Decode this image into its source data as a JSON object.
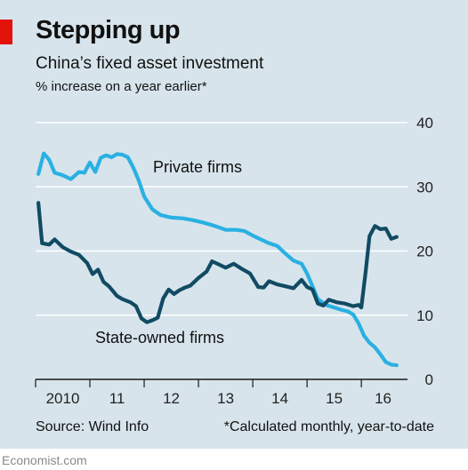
{
  "header": {
    "title": "Stepping up",
    "subtitle": "China’s fixed asset investment",
    "unit": "% increase on a year earlier*"
  },
  "footer": {
    "source": "Source: Wind Info",
    "footnote": "*Calculated monthly, year-to-date",
    "brand": "Economist.com"
  },
  "colors": {
    "background": "#d7e4ec",
    "accent": "#e3120b",
    "private": "#2ab0e3",
    "state": "#114b63",
    "grid": "#ffffff"
  },
  "chart_data": {
    "type": "line",
    "title": "China’s fixed asset investment",
    "ylabel": "% increase on a year earlier*",
    "ylim": [
      0,
      40
    ],
    "yticks": [
      0,
      10,
      20,
      30,
      40
    ],
    "xlim": [
      2010.0,
      2016.85
    ],
    "xticks": [
      {
        "value": 2010.5,
        "label": "2010"
      },
      {
        "value": 2011.5,
        "label": "11"
      },
      {
        "value": 2012.5,
        "label": "12"
      },
      {
        "value": 2013.5,
        "label": "13"
      },
      {
        "value": 2014.5,
        "label": "14"
      },
      {
        "value": 2015.5,
        "label": "15"
      },
      {
        "value": 2016.4,
        "label": "16"
      }
    ],
    "grid": true,
    "y_axis_side": "right",
    "series": [
      {
        "name": "Private firms",
        "points": [
          [
            2010.05,
            32
          ],
          [
            2010.15,
            35.2
          ],
          [
            2010.25,
            34.2
          ],
          [
            2010.35,
            32.2
          ],
          [
            2010.5,
            31.8
          ],
          [
            2010.65,
            31.2
          ],
          [
            2010.8,
            32.3
          ],
          [
            2010.9,
            32.2
          ],
          [
            2011.0,
            33.8
          ],
          [
            2011.1,
            32.3
          ],
          [
            2011.2,
            34.5
          ],
          [
            2011.3,
            34.9
          ],
          [
            2011.4,
            34.6
          ],
          [
            2011.5,
            35.1
          ],
          [
            2011.6,
            35
          ],
          [
            2011.7,
            34.6
          ],
          [
            2011.8,
            33
          ],
          [
            2011.9,
            31
          ],
          [
            2012.0,
            28.5
          ],
          [
            2012.15,
            26.5
          ],
          [
            2012.3,
            25.6
          ],
          [
            2012.5,
            25.2
          ],
          [
            2012.7,
            25.1
          ],
          [
            2012.9,
            24.8
          ],
          [
            2013.1,
            24.4
          ],
          [
            2013.3,
            23.9
          ],
          [
            2013.5,
            23.3
          ],
          [
            2013.7,
            23.3
          ],
          [
            2013.85,
            23.1
          ],
          [
            2014.0,
            22.4
          ],
          [
            2014.15,
            21.8
          ],
          [
            2014.3,
            21.2
          ],
          [
            2014.45,
            20.8
          ],
          [
            2014.6,
            19.6
          ],
          [
            2014.75,
            18.5
          ],
          [
            2014.9,
            18.0
          ],
          [
            2015.0,
            16.5
          ],
          [
            2015.1,
            14.5
          ],
          [
            2015.2,
            12.5
          ],
          [
            2015.35,
            11.6
          ],
          [
            2015.5,
            11.2
          ],
          [
            2015.65,
            10.8
          ],
          [
            2015.75,
            10.6
          ],
          [
            2015.85,
            10.1
          ],
          [
            2015.95,
            8.7
          ],
          [
            2016.05,
            6.8
          ],
          [
            2016.15,
            5.7
          ],
          [
            2016.25,
            5.0
          ],
          [
            2016.35,
            3.9
          ],
          [
            2016.45,
            2.7
          ],
          [
            2016.55,
            2.3
          ],
          [
            2016.65,
            2.2
          ]
        ]
      },
      {
        "name": "State-owned firms",
        "points": [
          [
            2010.05,
            27.5
          ],
          [
            2010.12,
            21.2
          ],
          [
            2010.25,
            21.0
          ],
          [
            2010.35,
            21.8
          ],
          [
            2010.5,
            20.6
          ],
          [
            2010.65,
            19.9
          ],
          [
            2010.8,
            19.4
          ],
          [
            2010.95,
            18.1
          ],
          [
            2011.05,
            16.4
          ],
          [
            2011.15,
            17.1
          ],
          [
            2011.25,
            15.2
          ],
          [
            2011.35,
            14.5
          ],
          [
            2011.5,
            13.0
          ],
          [
            2011.6,
            12.5
          ],
          [
            2011.75,
            12.0
          ],
          [
            2011.85,
            11.4
          ],
          [
            2011.95,
            9.5
          ],
          [
            2012.05,
            8.9
          ],
          [
            2012.15,
            9.2
          ],
          [
            2012.25,
            9.6
          ],
          [
            2012.35,
            12.6
          ],
          [
            2012.45,
            14.0
          ],
          [
            2012.55,
            13.3
          ],
          [
            2012.65,
            13.9
          ],
          [
            2012.75,
            14.3
          ],
          [
            2012.85,
            14.6
          ],
          [
            2013.0,
            15.8
          ],
          [
            2013.15,
            16.8
          ],
          [
            2013.25,
            18.4
          ],
          [
            2013.35,
            18.0
          ],
          [
            2013.5,
            17.4
          ],
          [
            2013.65,
            18.0
          ],
          [
            2013.8,
            17.2
          ],
          [
            2013.95,
            16.5
          ],
          [
            2014.1,
            14.4
          ],
          [
            2014.2,
            14.3
          ],
          [
            2014.3,
            15.3
          ],
          [
            2014.45,
            14.8
          ],
          [
            2014.6,
            14.5
          ],
          [
            2014.75,
            14.2
          ],
          [
            2014.9,
            15.5
          ],
          [
            2015.0,
            14.4
          ],
          [
            2015.1,
            14.0
          ],
          [
            2015.2,
            11.8
          ],
          [
            2015.3,
            11.5
          ],
          [
            2015.4,
            12.4
          ],
          [
            2015.55,
            12.0
          ],
          [
            2015.7,
            11.8
          ],
          [
            2015.85,
            11.4
          ],
          [
            2015.95,
            11.6
          ],
          [
            2016.0,
            11.2
          ],
          [
            2016.08,
            16.8
          ],
          [
            2016.15,
            22.3
          ],
          [
            2016.25,
            23.9
          ],
          [
            2016.35,
            23.4
          ],
          [
            2016.45,
            23.5
          ],
          [
            2016.55,
            21.9
          ],
          [
            2016.65,
            22.2
          ]
        ]
      }
    ]
  }
}
